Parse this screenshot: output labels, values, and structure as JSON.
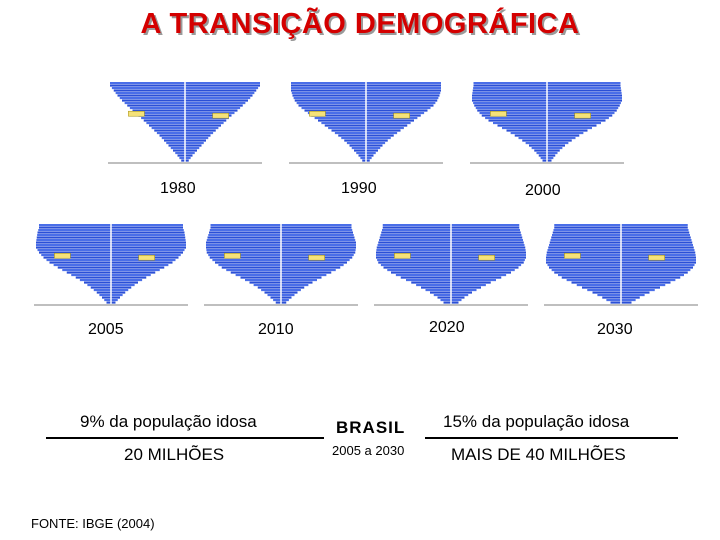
{
  "title": "A TRANSIÇÃO DEMOGRÁFICA",
  "years": [
    "1980",
    "1990",
    "2000",
    "2005",
    "2010",
    "2020",
    "2030"
  ],
  "left": {
    "stat": "9% da população idosa",
    "count": "20 MILHÕES"
  },
  "center": {
    "country": "BRASIL",
    "period": "2005 a 2030"
  },
  "right": {
    "stat": "15% da população idosa",
    "count": "MAIS DE 40 MILHÕES"
  },
  "source": "FONTE: IBGE (2004)",
  "colors": {
    "title": "#d40000",
    "bars": "#2b4fd6",
    "bars_alt": "#4a6ee8"
  },
  "pyramids": [
    {
      "year": "1980",
      "shape": [
        0.05,
        0.1,
        0.16,
        0.22,
        0.28,
        0.34,
        0.41,
        0.48,
        0.55,
        0.62,
        0.7,
        0.77,
        0.84,
        0.9,
        0.95,
        1.0
      ]
    },
    {
      "year": "1990",
      "shape": [
        0.05,
        0.1,
        0.16,
        0.22,
        0.29,
        0.37,
        0.46,
        0.55,
        0.64,
        0.73,
        0.82,
        0.9,
        0.95,
        0.98,
        1.0,
        1.0
      ]
    },
    {
      "year": "2000",
      "shape": [
        0.06,
        0.11,
        0.17,
        0.24,
        0.33,
        0.43,
        0.54,
        0.66,
        0.78,
        0.87,
        0.93,
        0.97,
        1.0,
        1.0,
        0.99,
        0.98
      ]
    },
    {
      "year": "2005",
      "shape": [
        0.06,
        0.12,
        0.19,
        0.27,
        0.36,
        0.47,
        0.59,
        0.71,
        0.82,
        0.9,
        0.96,
        1.0,
        1.0,
        0.99,
        0.98,
        0.96
      ]
    },
    {
      "year": "2010",
      "shape": [
        0.07,
        0.14,
        0.22,
        0.31,
        0.42,
        0.54,
        0.67,
        0.79,
        0.88,
        0.95,
        0.99,
        1.0,
        1.0,
        0.98,
        0.96,
        0.94
      ]
    },
    {
      "year": "2020",
      "shape": [
        0.1,
        0.18,
        0.28,
        0.4,
        0.53,
        0.67,
        0.8,
        0.9,
        0.97,
        1.0,
        1.0,
        0.99,
        0.97,
        0.95,
        0.93,
        0.91
      ]
    },
    {
      "year": "2030",
      "shape": [
        0.14,
        0.25,
        0.38,
        0.52,
        0.66,
        0.79,
        0.89,
        0.96,
        1.0,
        1.0,
        0.99,
        0.97,
        0.95,
        0.93,
        0.91,
        0.89
      ]
    }
  ]
}
